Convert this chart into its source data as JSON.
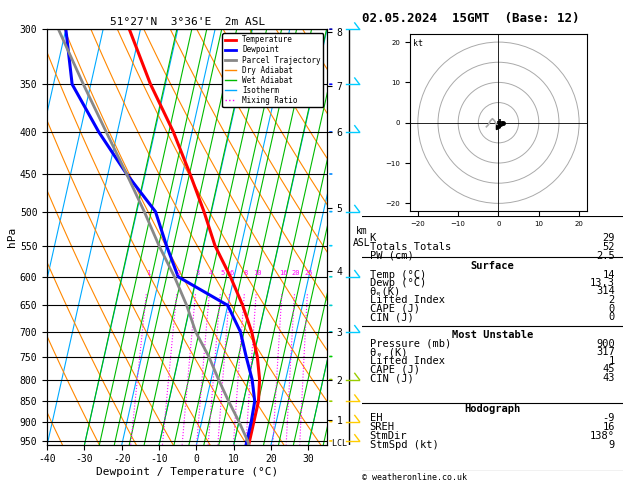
{
  "title_left": "51°27'N  3°36'E  2m ASL",
  "title_right": "02.05.2024  15GMT  (Base: 12)",
  "ylabel_left": "hPa",
  "xlabel": "Dewpoint / Temperature (°C)",
  "pressure_ticks": [
    300,
    350,
    400,
    450,
    500,
    550,
    600,
    650,
    700,
    750,
    800,
    850,
    900,
    950
  ],
  "temp_min": -40,
  "temp_max": 35,
  "temp_ticks": [
    -40,
    -30,
    -20,
    -10,
    0,
    10,
    20,
    30
  ],
  "km_ticks": [
    1,
    2,
    3,
    4,
    5,
    6,
    7,
    8
  ],
  "km_pressures": [
    895,
    800,
    700,
    590,
    495,
    400,
    352,
    302
  ],
  "lcl_pressure": 958,
  "mixing_ratio_vals": [
    1,
    2,
    3,
    4,
    5,
    6,
    8,
    10,
    16,
    20,
    25
  ],
  "mixing_ratio_label_pressure": 593,
  "p_min": 300,
  "p_max": 960,
  "skew_factor": 25,
  "legend_entries": [
    {
      "label": "Temperature",
      "color": "#ff0000",
      "lw": 2,
      "ls": "-"
    },
    {
      "label": "Dewpoint",
      "color": "#0000ff",
      "lw": 2,
      "ls": "-"
    },
    {
      "label": "Parcel Trajectory",
      "color": "#888888",
      "lw": 2,
      "ls": "-"
    },
    {
      "label": "Dry Adiabat",
      "color": "#ff8800",
      "lw": 1,
      "ls": "-"
    },
    {
      "label": "Wet Adiabat",
      "color": "#00bb00",
      "lw": 1,
      "ls": "-"
    },
    {
      "label": "Isotherm",
      "color": "#00aaff",
      "lw": 1,
      "ls": "-"
    },
    {
      "label": "Mixing Ratio",
      "color": "#ff00ff",
      "lw": 1,
      "ls": ":"
    }
  ],
  "temperature_profile": {
    "pressure": [
      300,
      350,
      400,
      450,
      500,
      550,
      600,
      650,
      700,
      750,
      800,
      850,
      900,
      950,
      960
    ],
    "temp": [
      -43,
      -34,
      -25,
      -18,
      -12,
      -7,
      -1,
      4,
      8,
      11,
      13,
      14,
      14,
      14,
      14
    ]
  },
  "dewpoint_profile": {
    "pressure": [
      300,
      350,
      400,
      450,
      500,
      550,
      600,
      650,
      700,
      750,
      800,
      850,
      900,
      950,
      960
    ],
    "temp": [
      -60,
      -55,
      -45,
      -35,
      -25,
      -20,
      -15,
      0,
      5,
      8,
      11,
      13,
      13.3,
      13.3,
      13.3
    ]
  },
  "parcel_profile": {
    "pressure": [
      960,
      950,
      900,
      850,
      800,
      750,
      700,
      650,
      600,
      550,
      500,
      450,
      400,
      350,
      300
    ],
    "temp": [
      14,
      13.5,
      10,
      6,
      2,
      -2,
      -7,
      -11,
      -16,
      -22,
      -28,
      -35,
      -43,
      -52,
      -62
    ]
  },
  "data_panel": {
    "K": 29,
    "Totals_Totals": 52,
    "PW_cm": 2.5,
    "Surface_Temp": 14,
    "Surface_Dewp": 13.3,
    "Surface_ThetaE": 314,
    "Surface_LiftedIndex": 2,
    "Surface_CAPE": 0,
    "Surface_CIN": 0,
    "MU_Pressure": 900,
    "MU_ThetaE": 317,
    "MU_LiftedIndex": 1,
    "MU_CAPE": 45,
    "MU_CIN": 43,
    "EH": -9,
    "SREH": 16,
    "StmDir": "138°",
    "StmSpd": 9
  },
  "wind_barb_pressures": [
    950,
    900,
    850,
    800,
    750,
    700,
    650,
    600,
    550,
    500,
    450,
    400,
    350,
    300
  ],
  "wind_barb_colors": [
    "#ffcc00",
    "#ffcc00",
    "#99cc00",
    "#99cc00",
    "#00cc00",
    "#00cccc",
    "#00cccc",
    "#00cccc",
    "#00ccff",
    "#00aaff",
    "#0088ff",
    "#0055ff",
    "#0000ff",
    "#0000aa"
  ],
  "hodo_curve_u": [
    -3,
    -2.5,
    -2,
    -1.5,
    -1,
    -0.5,
    0,
    0.5,
    1
  ],
  "hodo_curve_v": [
    -1,
    -0.5,
    0.5,
    1,
    0.5,
    -0.5,
    -1,
    -0.5,
    0
  ]
}
